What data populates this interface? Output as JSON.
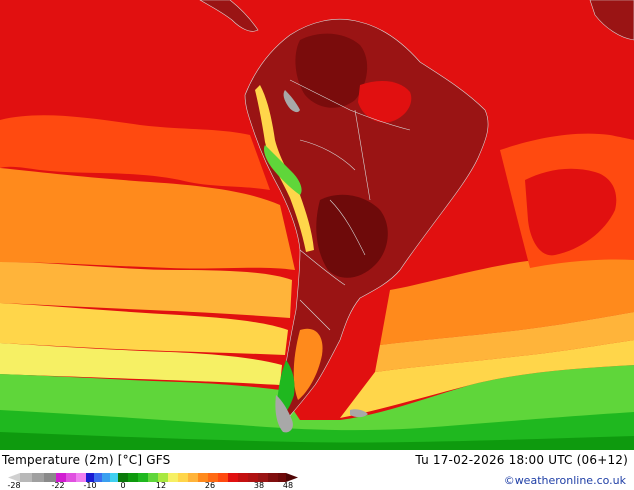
{
  "map": {
    "product": "Temperature (2m) [°C] GFS",
    "valid_time": "Tu 17-02-2026 18:00 UTC (06+12)",
    "credit": "©weatheronline.co.uk",
    "colors": {
      "very_hot": "#6e0a0a",
      "hot": "#9a1414",
      "warm_red": "#e11010",
      "orange_red": "#ff4a10",
      "orange": "#ff8a1c",
      "light_orange": "#ffb43a",
      "yellow": "#ffd64a",
      "pale_yellow": "#f6f064",
      "light_green": "#5fd63a",
      "green": "#1fb81f",
      "dark_green": "#0e9a0e",
      "grey": "#a8a8a8"
    }
  },
  "legend": {
    "ticks": [
      "-28",
      "-22",
      "-10",
      "0",
      "12",
      "26",
      "38",
      "48"
    ]
  }
}
